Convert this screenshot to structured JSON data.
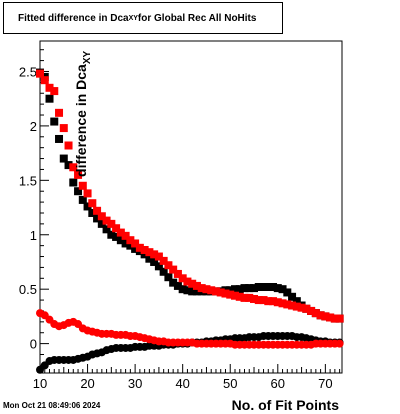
{
  "title_box": {
    "prefix": "Fitted difference in Dca",
    "subscript": "XY",
    "suffix": " for Global Rec All NoHits"
  },
  "timestamp": "Mon Oct 21 08:49:06 2024",
  "colors": {
    "black_series": "#000000",
    "red_series": "#ff0000",
    "axis": "#000000"
  },
  "chart_data": {
    "type": "scatter",
    "title": "Fitted difference in Dca_XY for Global Rec All NoHits",
    "xlabel": "No. of Fit Points",
    "ylabel": "difference in Dca",
    "ylabel_sub": "XY",
    "xlim": [
      10,
      73.5
    ],
    "ylim": [
      -0.27,
      2.78
    ],
    "xticks": [
      10,
      20,
      30,
      40,
      50,
      60,
      70
    ],
    "yticks": [
      0,
      0.5,
      1,
      1.5,
      2,
      2.5
    ],
    "grid": false,
    "x": [
      10,
      11,
      12,
      13,
      14,
      15,
      16,
      17,
      18,
      19,
      20,
      21,
      22,
      23,
      24,
      25,
      26,
      27,
      28,
      29,
      30,
      31,
      32,
      33,
      34,
      35,
      36,
      37,
      38,
      39,
      40,
      41,
      42,
      43,
      44,
      45,
      46,
      47,
      48,
      49,
      50,
      51,
      52,
      53,
      54,
      55,
      56,
      57,
      58,
      59,
      60,
      61,
      62,
      63,
      64,
      65,
      66,
      67,
      68,
      69,
      70,
      71,
      72,
      73
    ],
    "series": [
      {
        "color": "#000000",
        "marker": "square",
        "values": [
          2.49,
          2.45,
          2.25,
          2.04,
          1.88,
          1.7,
          1.64,
          1.48,
          1.4,
          1.32,
          1.26,
          1.2,
          1.15,
          1.1,
          1.05,
          1.0,
          0.98,
          0.95,
          0.92,
          0.9,
          0.87,
          0.85,
          0.82,
          0.78,
          0.75,
          0.71,
          0.66,
          0.61,
          0.56,
          0.53,
          0.5,
          0.49,
          0.48,
          0.48,
          0.48,
          0.48,
          0.48,
          0.48,
          0.48,
          0.49,
          0.49,
          0.5,
          0.5,
          0.51,
          0.51,
          0.51,
          0.52,
          0.52,
          0.52,
          0.52,
          0.51,
          0.5,
          0.47,
          0.43,
          0.39,
          0.35,
          0.32,
          0.3,
          0.28,
          0.26,
          0.25,
          0.24,
          0.23,
          0.23
        ]
      },
      {
        "color": "#ff0000",
        "marker": "square",
        "values": [
          2.48,
          2.42,
          2.35,
          2.32,
          2.12,
          1.98,
          1.82,
          1.62,
          1.55,
          1.45,
          1.38,
          1.29,
          1.22,
          1.17,
          1.13,
          1.1,
          1.06,
          1.02,
          0.99,
          0.95,
          0.92,
          0.88,
          0.86,
          0.84,
          0.82,
          0.8,
          0.76,
          0.72,
          0.68,
          0.64,
          0.6,
          0.57,
          0.55,
          0.53,
          0.51,
          0.5,
          0.49,
          0.48,
          0.47,
          0.46,
          0.45,
          0.44,
          0.43,
          0.42,
          0.42,
          0.41,
          0.4,
          0.4,
          0.39,
          0.39,
          0.38,
          0.37,
          0.36,
          0.35,
          0.34,
          0.33,
          0.32,
          0.3,
          0.28,
          0.26,
          0.25,
          0.24,
          0.23,
          0.23
        ]
      },
      {
        "color": "#000000",
        "marker": "circle",
        "values": [
          -0.24,
          -0.2,
          -0.16,
          -0.15,
          -0.15,
          -0.15,
          -0.15,
          -0.15,
          -0.14,
          -0.13,
          -0.12,
          -0.1,
          -0.09,
          -0.08,
          -0.06,
          -0.05,
          -0.04,
          -0.04,
          -0.04,
          -0.04,
          -0.03,
          -0.03,
          -0.03,
          -0.02,
          -0.02,
          -0.02,
          -0.01,
          -0.01,
          -0.01,
          0.0,
          0.0,
          0.0,
          0.01,
          0.01,
          0.01,
          0.02,
          0.02,
          0.03,
          0.03,
          0.04,
          0.04,
          0.05,
          0.05,
          0.05,
          0.06,
          0.06,
          0.06,
          0.07,
          0.07,
          0.07,
          0.07,
          0.07,
          0.07,
          0.07,
          0.06,
          0.06,
          0.05,
          0.04,
          0.03,
          0.02,
          0.02,
          0.01,
          0.01,
          0.01
        ]
      },
      {
        "color": "#ff0000",
        "marker": "circle",
        "values": [
          0.28,
          0.26,
          0.22,
          0.18,
          0.16,
          0.17,
          0.19,
          0.2,
          0.18,
          0.14,
          0.12,
          0.11,
          0.1,
          0.09,
          0.09,
          0.09,
          0.08,
          0.08,
          0.08,
          0.07,
          0.07,
          0.06,
          0.05,
          0.04,
          0.03,
          0.02,
          0.02,
          0.01,
          0.01,
          0.01,
          0.01,
          0.01,
          0.01,
          0.0,
          0.0,
          0.0,
          0.0,
          0.0,
          0.0,
          0.0,
          0.0,
          -0.01,
          -0.01,
          -0.01,
          -0.01,
          -0.01,
          -0.01,
          -0.01,
          -0.01,
          -0.01,
          -0.01,
          -0.01,
          -0.01,
          -0.01,
          -0.01,
          -0.01,
          -0.01,
          -0.01,
          0.0,
          0.0,
          0.0,
          0.0,
          0.0,
          0.0
        ]
      }
    ]
  }
}
